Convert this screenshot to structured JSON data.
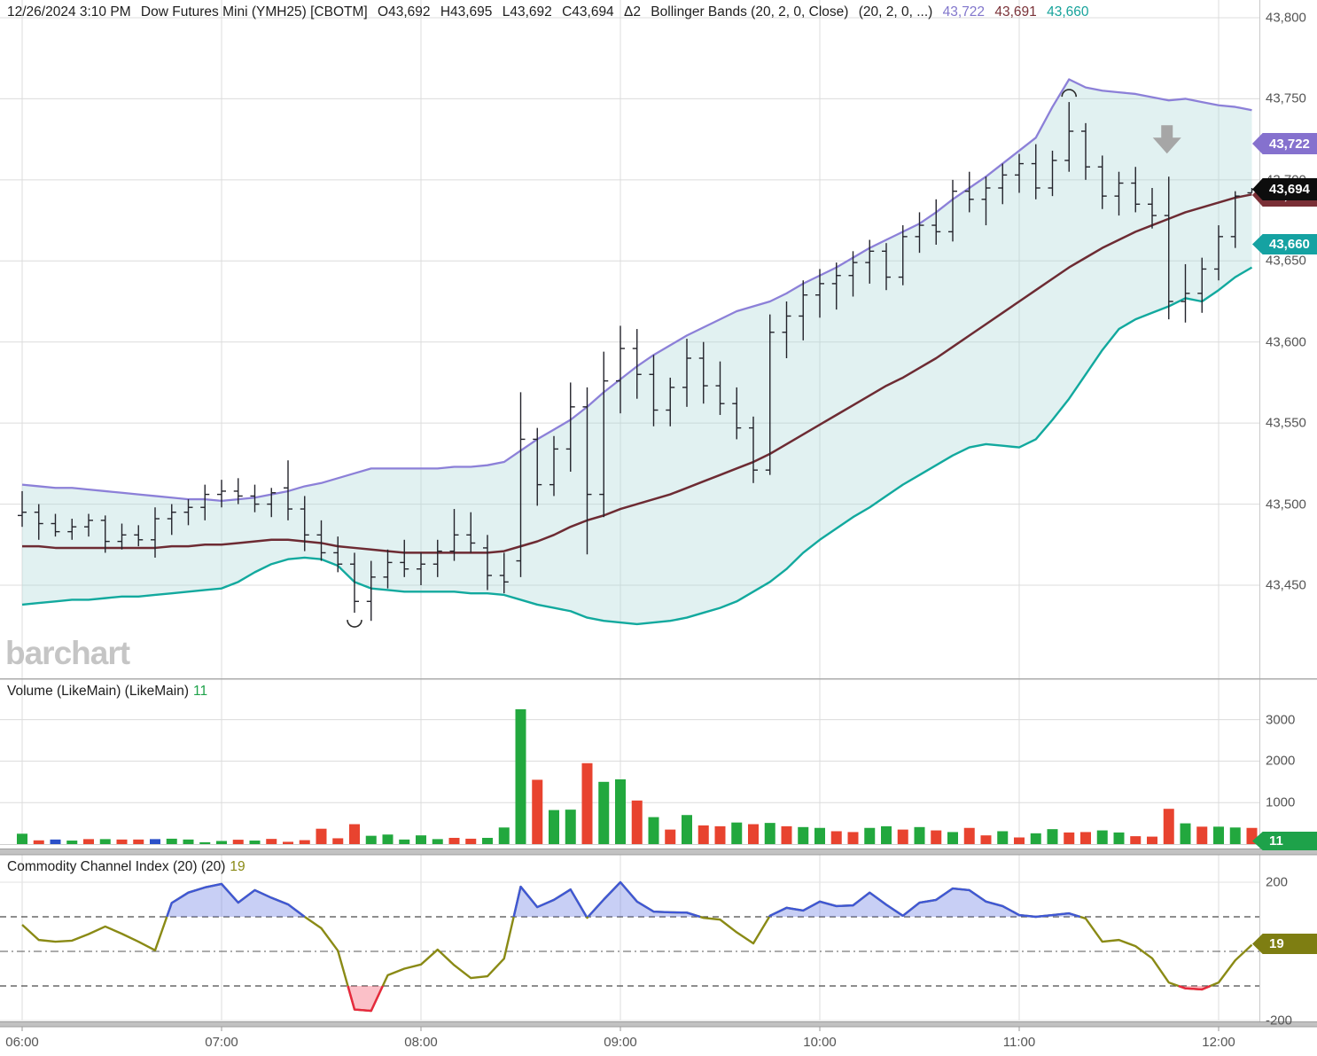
{
  "header": {
    "date_time": "12/26/2024 3:10 PM",
    "symbol": "Dow Futures Mini (YMH25) [CBOTM]",
    "open": "O43,692",
    "high": "H43,695",
    "low": "L43,692",
    "close": "C43,694",
    "change": "Δ2",
    "study": "Bollinger Bands (20, 2, 0, Close)",
    "study_params": "(20, 2, 0, ...)",
    "bb_upper_value": "43,722",
    "bb_middle_value": "43,691",
    "bb_lower_value": "43,660"
  },
  "watermark": "barchart",
  "panels": {
    "volume": {
      "label": "Volume (LikeMain)  (LikeMain)",
      "value": "11"
    },
    "cci": {
      "label": "Commodity Channel Index (20)  (20)",
      "value": "19"
    }
  },
  "badges": {
    "bb_upper": "43,722",
    "last_price": "43,694",
    "bb_middle": "43,691",
    "bb_lower": "43,660",
    "volume": "11",
    "cci": "19"
  },
  "axes": {
    "price_ticks": [
      43800,
      43750,
      43700,
      43650,
      43600,
      43550,
      43500,
      43450
    ],
    "price_tick_labels": [
      "43,800",
      "43,750",
      "43,700",
      "43,650",
      "43,600",
      "43,550",
      "43,500",
      "43,450"
    ],
    "volume_ticks": [
      3000,
      2000,
      1000
    ],
    "cci_ticks": [
      200,
      -200
    ],
    "time_labels": [
      "06:00",
      "07:00",
      "08:00",
      "09:00",
      "10:00",
      "11:00",
      "12:00"
    ]
  },
  "colors": {
    "up": "#22a83e",
    "down": "#e8432f",
    "unchanged": "#2b50c8",
    "bar": "#23232b",
    "bb_upper": "#8c80d8",
    "bb_middle": "#6d2b33",
    "bb_lower": "#12a99e",
    "band_fill": "rgba(168,214,216,0.35)",
    "cci_line": "#8a8a15",
    "cci_above": "#3f57d6",
    "cci_below": "#e8283f",
    "cci_fill_above": "rgba(110,130,230,0.38)",
    "cci_fill_below": "rgba(245,90,110,0.38)",
    "grid": "#dcdcdc",
    "arrow": "#a6a6a6"
  },
  "chart_data": {
    "type": "multi-panel",
    "timeframe": "5min",
    "bars": 75,
    "x_start": "06:00",
    "x_end": "12:10",
    "panels": [
      {
        "type": "ohlc",
        "name": "price",
        "ylim": [
          43393,
          43811
        ],
        "yticks": [
          43800,
          43750,
          43700,
          43650,
          43600,
          43550,
          43500,
          43450
        ],
        "open": [
          43493,
          43495,
          43488,
          43483,
          43486,
          43490,
          43477,
          43481,
          43478,
          43491,
          43495,
          43498,
          43506,
          43508,
          43505,
          43500,
          43510,
          43497,
          43481,
          43470,
          43463,
          43440,
          43455,
          43464,
          43460,
          43463,
          43471,
          43481,
          43473,
          43456,
          43465,
          43540,
          43512,
          43534,
          43560,
          43506,
          43576,
          43596,
          43580,
          43558,
          43572,
          43590,
          43573,
          43562,
          43547,
          43521,
          43606,
          43616,
          43629,
          43636,
          43641,
          43649,
          43656,
          43640,
          43665,
          43672,
          43668,
          43693,
          43688,
          43695,
          43703,
          43710,
          43695,
          43712,
          43730,
          43708,
          43690,
          43698,
          43685,
          43678,
          43625,
          43630,
          43645,
          43665,
          43692
        ],
        "high": [
          43508,
          43500,
          43494,
          43491,
          43494,
          43493,
          43488,
          43487,
          43498,
          43500,
          43503,
          43512,
          43515,
          43516,
          43512,
          43510,
          43527,
          43505,
          43490,
          43480,
          43470,
          43465,
          43472,
          43478,
          43470,
          43478,
          43497,
          43495,
          43481,
          43470,
          43569,
          43547,
          43542,
          43575,
          43572,
          43594,
          43610,
          43608,
          43592,
          43578,
          43602,
          43600,
          43588,
          43572,
          43554,
          43617,
          43625,
          43638,
          43645,
          43649,
          43656,
          43663,
          43661,
          43672,
          43680,
          43688,
          43700,
          43705,
          43702,
          43710,
          43716,
          43722,
          43718,
          43748,
          43735,
          43715,
          43705,
          43708,
          43695,
          43702,
          43648,
          43652,
          43672,
          43693,
          43695
        ],
        "low": [
          43486,
          43478,
          43480,
          43478,
          43480,
          43470,
          43472,
          43474,
          43467,
          43481,
          43487,
          43490,
          43498,
          43500,
          43495,
          43492,
          43490,
          43471,
          43465,
          43458,
          43433,
          43428,
          43448,
          43455,
          43450,
          43455,
          43465,
          43470,
          43447,
          43445,
          43455,
          43499,
          43505,
          43520,
          43469,
          43492,
          43556,
          43565,
          43548,
          43548,
          43560,
          43562,
          43555,
          43540,
          43513,
          43518,
          43590,
          43601,
          43615,
          43620,
          43628,
          43636,
          43632,
          43635,
          43655,
          43660,
          43662,
          43680,
          43672,
          43685,
          43692,
          43688,
          43690,
          43705,
          43700,
          43682,
          43678,
          43680,
          43670,
          43614,
          43612,
          43618,
          43638,
          43658,
          43692
        ],
        "close": [
          43495,
          43488,
          43483,
          43486,
          43490,
          43477,
          43481,
          43478,
          43491,
          43495,
          43498,
          43506,
          43508,
          43505,
          43500,
          43507,
          43497,
          43481,
          43470,
          43463,
          43440,
          43455,
          43464,
          43460,
          43463,
          43471,
          43481,
          43476,
          43456,
          43452,
          43540,
          43512,
          43534,
          43560,
          43506,
          43576,
          43596,
          43580,
          43558,
          43572,
          43590,
          43573,
          43562,
          43547,
          43521,
          43606,
          43616,
          43629,
          43636,
          43641,
          43649,
          43656,
          43640,
          43665,
          43672,
          43668,
          43693,
          43688,
          43695,
          43703,
          43710,
          43695,
          43712,
          43730,
          43708,
          43690,
          43698,
          43685,
          43678,
          43625,
          43630,
          43645,
          43665,
          43690,
          43694
        ],
        "bollinger": {
          "upper": [
            43512,
            43511,
            43510,
            43510,
            43509,
            43508,
            43507,
            43506,
            43505,
            43504,
            43503,
            43503,
            43502,
            43503,
            43504,
            43506,
            43508,
            43511,
            43513,
            43516,
            43519,
            43522,
            43522,
            43522,
            43522,
            43522,
            43523,
            43523,
            43524,
            43526,
            43533,
            43540,
            43546,
            43552,
            43560,
            43569,
            43577,
            43585,
            43592,
            43598,
            43604,
            43609,
            43614,
            43619,
            43622,
            43625,
            43630,
            43636,
            43641,
            43646,
            43652,
            43658,
            43663,
            43668,
            43673,
            43680,
            43688,
            43695,
            43702,
            43710,
            43718,
            43726,
            43745,
            43762,
            43757,
            43755,
            43754,
            43753,
            43751,
            43749,
            43750,
            43748,
            43746,
            43745,
            43743
          ],
          "middle": [
            43474,
            43474,
            43473,
            43473,
            43473,
            43473,
            43473,
            43473,
            43473,
            43474,
            43474,
            43475,
            43475,
            43476,
            43477,
            43478,
            43478,
            43477,
            43476,
            43474,
            43473,
            43472,
            43471,
            43470,
            43470,
            43470,
            43470,
            43470,
            43470,
            43471,
            43474,
            43477,
            43481,
            43486,
            43490,
            43493,
            43497,
            43500,
            43503,
            43506,
            43510,
            43514,
            43518,
            43522,
            43526,
            43531,
            43537,
            43543,
            43549,
            43555,
            43561,
            43567,
            43573,
            43578,
            43584,
            43590,
            43597,
            43604,
            43611,
            43618,
            43625,
            43632,
            43639,
            43646,
            43652,
            43658,
            43663,
            43668,
            43672,
            43676,
            43680,
            43683,
            43686,
            43689,
            43691
          ],
          "lower": [
            43438,
            43439,
            43440,
            43441,
            43441,
            43442,
            43443,
            43443,
            43444,
            43445,
            43446,
            43447,
            43448,
            43452,
            43458,
            43463,
            43466,
            43467,
            43466,
            43462,
            43452,
            43448,
            43447,
            43446,
            43446,
            43446,
            43446,
            43445,
            43445,
            43444,
            43441,
            43438,
            43436,
            43434,
            43430,
            43428,
            43427,
            43426,
            43427,
            43428,
            43430,
            43433,
            43436,
            43440,
            43446,
            43452,
            43460,
            43470,
            43478,
            43485,
            43492,
            43498,
            43505,
            43512,
            43518,
            43524,
            43530,
            43535,
            43537,
            43536,
            43535,
            43540,
            43552,
            43565,
            43580,
            43595,
            43608,
            43614,
            43618,
            43622,
            43627,
            43625,
            43632,
            43640,
            43646
          ]
        },
        "markers": [
          {
            "type": "arc-under-low",
            "index": 20
          },
          {
            "type": "arc-over-high",
            "index": 63
          },
          {
            "type": "down-arrow",
            "index": 69
          }
        ]
      },
      {
        "type": "bar",
        "name": "volume",
        "yticks": [
          1000,
          2000,
          3000
        ],
        "values": [
          250,
          90,
          110,
          85,
          120,
          120,
          110,
          110,
          120,
          130,
          110,
          45,
          75,
          105,
          85,
          125,
          55,
          95,
          370,
          140,
          480,
          200,
          230,
          110,
          210,
          120,
          150,
          130,
          150,
          400,
          3250,
          1550,
          820,
          830,
          1950,
          1500,
          1560,
          1050,
          650,
          350,
          700,
          450,
          430,
          520,
          480,
          510,
          430,
          410,
          390,
          310,
          290,
          390,
          430,
          350,
          410,
          330,
          290,
          390,
          210,
          310,
          160,
          260,
          360,
          280,
          290,
          330,
          280,
          190,
          180,
          850,
          500,
          420,
          420,
          400,
          390
        ],
        "bar_colors": [
          "g",
          "r",
          "b",
          "g",
          "r",
          "g",
          "r",
          "r",
          "b",
          "g",
          "g",
          "g",
          "g",
          "r",
          "g",
          "r",
          "r",
          "r",
          "r",
          "r",
          "r",
          "g",
          "g",
          "g",
          "g",
          "g",
          "r",
          "r",
          "g",
          "g",
          "g",
          "r",
          "g",
          "g",
          "r",
          "g",
          "g",
          "r",
          "g",
          "r",
          "g",
          "r",
          "r",
          "g",
          "r",
          "g",
          "r",
          "g",
          "g",
          "r",
          "r",
          "g",
          "g",
          "r",
          "g",
          "r",
          "g",
          "r",
          "r",
          "g",
          "r",
          "g",
          "g",
          "r",
          "r",
          "g",
          "g",
          "r",
          "r",
          "r",
          "g",
          "r",
          "g",
          "g",
          "r"
        ],
        "current_value": 11
      },
      {
        "type": "line",
        "name": "cci",
        "ylim": [
          -200,
          200
        ],
        "yticks": [
          200,
          -200
        ],
        "reference_lines": {
          "upper": 100,
          "zero": 0,
          "lower": -100
        },
        "values": [
          77,
          33,
          28,
          31,
          50,
          72,
          51,
          28,
          3,
          140,
          170,
          185,
          195,
          141,
          177,
          155,
          136,
          100,
          67,
          2,
          -168,
          -172,
          -69,
          -50,
          -38,
          5,
          -40,
          -77,
          -72,
          -21,
          187,
          128,
          149,
          179,
          97,
          150,
          200,
          144,
          115,
          113,
          112,
          97,
          92,
          55,
          23,
          103,
          126,
          118,
          144,
          131,
          133,
          170,
          135,
          103,
          141,
          149,
          182,
          177,
          144,
          131,
          105,
          100,
          105,
          110,
          95,
          28,
          33,
          15,
          -20,
          -90,
          -107,
          -110,
          -90,
          -26,
          19
        ],
        "current_value": 19
      }
    ]
  }
}
